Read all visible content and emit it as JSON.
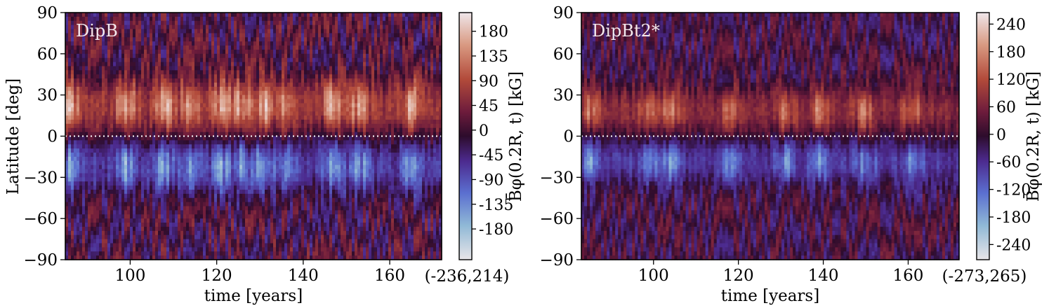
{
  "chart_data": [
    {
      "type": "heatmap",
      "label": "DipB",
      "xlabel": "time [years]",
      "ylabel": "Latitude [deg]",
      "xlim": [
        85,
        172
      ],
      "ylim": [
        -90,
        90
      ],
      "xticks": [
        100,
        120,
        140,
        160
      ],
      "yticks": [
        90,
        60,
        30,
        0,
        -30,
        -60,
        -90
      ],
      "ytick_labels": [
        "90",
        "60",
        "30",
        "0",
        "−30",
        "−60",
        "−90"
      ],
      "equator_line": 0,
      "colorbar": {
        "label": "B̄φ(0.2R, t) [kG]",
        "range": [
          -236,
          214
        ],
        "range_label": "(-236,214)",
        "ticks": [
          180,
          135,
          90,
          45,
          0,
          -45,
          -90,
          -135,
          -180
        ],
        "tick_labels": [
          "180",
          "135",
          "90",
          "45",
          "0",
          "-45",
          "-90",
          "-135",
          "-180"
        ]
      },
      "colormap": "twilight-shifted",
      "pattern": {
        "north_band_lat": [
          2,
          42
        ],
        "north_peak": 200,
        "south_band_lat": [
          -42,
          -2
        ],
        "south_peak": -190,
        "bursts": [
          86,
          99,
          108,
          114,
          121,
          126,
          131,
          136,
          147,
          153,
          165
        ]
      }
    },
    {
      "type": "heatmap",
      "label": "DipBt2*",
      "xlabel": "time [years]",
      "ylabel": "",
      "xlim": [
        83,
        172
      ],
      "ylim": [
        -90,
        90
      ],
      "xticks": [
        100,
        120,
        140,
        160
      ],
      "yticks": [
        90,
        60,
        30,
        0,
        -30,
        -60,
        -90
      ],
      "ytick_labels": [
        "90",
        "60",
        "30",
        "0",
        "−30",
        "−60",
        "−90"
      ],
      "equator_line": 0,
      "colorbar": {
        "label": "B̄φ(0.2R, t) [kG]",
        "range": [
          -273,
          265
        ],
        "range_label": "(-273,265)",
        "ticks": [
          240,
          180,
          120,
          60,
          0,
          -60,
          -120,
          -180,
          -240
        ],
        "tick_labels": [
          "240",
          "180",
          "120",
          "60",
          "0",
          "-60",
          "-120",
          "-180",
          "-240"
        ]
      },
      "colormap": "twilight-shifted",
      "pattern": {
        "north_band_lat": [
          2,
          35
        ],
        "north_peak": 210,
        "south_band_lat": [
          -35,
          -2
        ],
        "south_peak": -200,
        "bursts": [
          85,
          99,
          104,
          118,
          131,
          139,
          150,
          161
        ]
      }
    }
  ]
}
